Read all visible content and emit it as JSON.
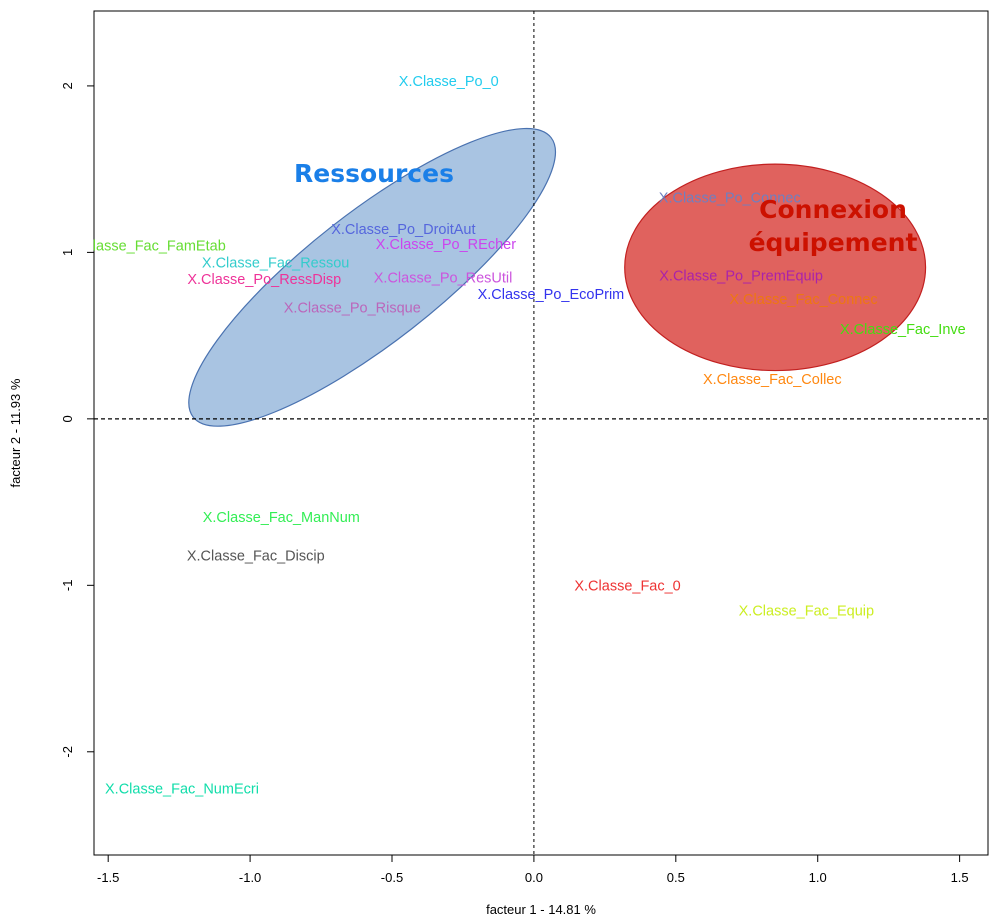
{
  "chart_data": {
    "type": "scatter",
    "xlabel": "facteur  1  - 14.81 %",
    "ylabel": "facteur  2  - 11.93 %",
    "xlim": [
      -1.55,
      1.6
    ],
    "ylim": [
      -2.62,
      2.45
    ],
    "xticks": [
      -1.5,
      -1.0,
      -0.5,
      0.0,
      0.5,
      1.0,
      1.5
    ],
    "xtick_labels": [
      "-1.5",
      "-1.0",
      "-0.5",
      "0.0",
      "0.5",
      "1.0",
      "1.5"
    ],
    "yticks": [
      -2,
      -1,
      0,
      1,
      2
    ],
    "ytick_labels": [
      "-2",
      "-1",
      "0",
      "1",
      "2"
    ],
    "reference_lines": {
      "x": 0,
      "y": 0,
      "style": "dashed"
    },
    "points": [
      {
        "label": "X.Classe_Po_0",
        "x": -0.3,
        "y": 2.03,
        "color": "#22ccee"
      },
      {
        "label": "X.Classe_Po_Connec",
        "x": 0.69,
        "y": 1.33,
        "color": "#6f7fc0"
      },
      {
        "label": "lasse_Fac_FamEtab",
        "x": -1.32,
        "y": 1.04,
        "color": "#66dd33"
      },
      {
        "label": "X.Classe_Po_DroitAut",
        "x": -0.46,
        "y": 1.14,
        "color": "#5566dd"
      },
      {
        "label": "X.Classe_Po_REcher",
        "x": -0.31,
        "y": 1.05,
        "color": "#cc44ee"
      },
      {
        "label": "X.Classe_Fac_Ressou",
        "x": -0.91,
        "y": 0.94,
        "color": "#33cccc"
      },
      {
        "label": "X.Classe_Po_RessDisp",
        "x": -0.95,
        "y": 0.84,
        "color": "#ee3399"
      },
      {
        "label": "X.Classe_Po_ResUtil",
        "x": -0.32,
        "y": 0.85,
        "color": "#cc55dd"
      },
      {
        "label": "X.Classe_Po_EcoPrim",
        "x": 0.06,
        "y": 0.75,
        "color": "#3333ee"
      },
      {
        "label": "X.Classe_Po_Risque",
        "x": -0.64,
        "y": 0.67,
        "color": "#bb66bb"
      },
      {
        "label": "X.Classe_Po_PremEquip",
        "x": 0.73,
        "y": 0.86,
        "color": "#aa22aa"
      },
      {
        "label": "X.Classe_Fac_Connec",
        "x": 0.95,
        "y": 0.72,
        "color": "#ee7711"
      },
      {
        "label": "X.Classe_Fac_Inve",
        "x": 1.3,
        "y": 0.54,
        "color": "#44dd11"
      },
      {
        "label": "X.Classe_Fac_Collec",
        "x": 0.84,
        "y": 0.24,
        "color": "#ff8811"
      },
      {
        "label": "X.Classe_Fac_ManNum",
        "x": -0.89,
        "y": -0.59,
        "color": "#33ee55"
      },
      {
        "label": "X.Classe_Fac_Discip",
        "x": -0.98,
        "y": -0.82,
        "color": "#555555"
      },
      {
        "label": "X.Classe_Fac_0",
        "x": 0.33,
        "y": -1.0,
        "color": "#ee3333"
      },
      {
        "label": "X.Classe_Fac_Equip",
        "x": 0.96,
        "y": -1.15,
        "color": "#ccee22"
      },
      {
        "label": "X.Classe_Fac_NumEcri",
        "x": -1.24,
        "y": -2.22,
        "color": "#11ddaa"
      }
    ],
    "groups": [
      {
        "name": "Ressources",
        "label_lines": [
          "Ressources"
        ],
        "label_color": "#1a7fe8",
        "fill": "#a9c4e2",
        "stroke": "#4a72b0",
        "center_x": -0.57,
        "center_y": 0.85,
        "semi_axis_major": 0.8,
        "semi_axis_minor": 0.39,
        "rotation_deg": 38
      },
      {
        "name": "Connexion équipement",
        "label_lines": [
          "Connexion",
          "équipement"
        ],
        "label_color": "#cc1100",
        "fill": "#e0625e",
        "stroke": "#c22020",
        "center_x": 0.85,
        "center_y": 0.91,
        "semi_axis_major": 0.53,
        "semi_axis_minor": 0.62,
        "rotation_deg": 0
      }
    ]
  }
}
